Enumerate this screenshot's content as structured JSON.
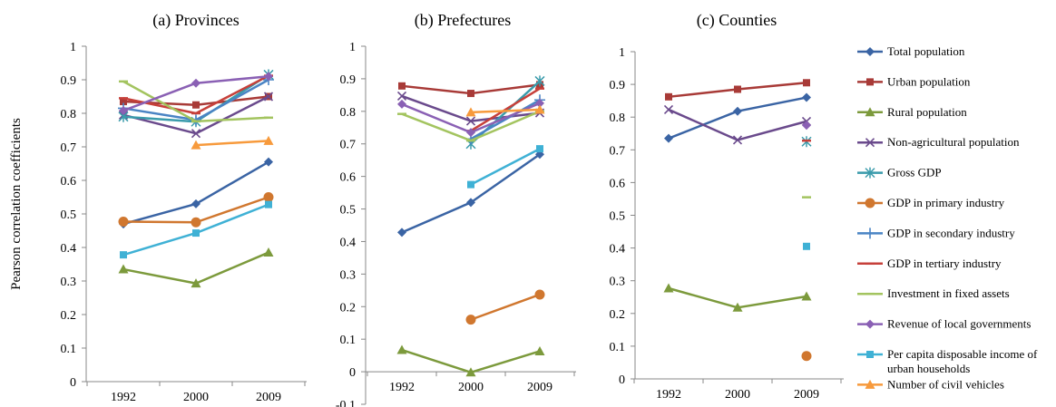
{
  "figure": {
    "ylabel": "Pearson correlation coefficients"
  },
  "chart_data": [
    {
      "type": "line",
      "title": "(a) Provinces",
      "categories": [
        "1992",
        "2000",
        "2009"
      ],
      "ylim": [
        0,
        1
      ],
      "yticks": [
        "0",
        "0.1",
        "0.2",
        "0.3",
        "0.4",
        "0.5",
        "0.6",
        "0.7",
        "0.8",
        "0.9",
        "1"
      ],
      "grid": false,
      "series": [
        {
          "name": "Total population",
          "values": [
            0.47,
            0.53,
            0.655
          ]
        },
        {
          "name": "Urban population",
          "values": [
            0.835,
            0.825,
            0.85
          ]
        },
        {
          "name": "Rural population",
          "values": [
            0.335,
            0.293,
            0.385
          ]
        },
        {
          "name": "Non-agricultural population",
          "values": [
            0.795,
            0.74,
            0.85
          ]
        },
        {
          "name": "Gross GDP",
          "values": [
            0.79,
            0.775,
            0.915
          ]
        },
        {
          "name": "GDP in primary industry",
          "values": [
            0.477,
            0.475,
            0.55
          ]
        },
        {
          "name": "GDP in secondary industry",
          "values": [
            0.815,
            0.78,
            0.9
          ]
        },
        {
          "name": "GDP in tertiary industry",
          "values": [
            0.845,
            0.8,
            0.912
          ]
        },
        {
          "name": "Investment in fixed assets",
          "values": [
            0.895,
            0.776,
            0.787
          ]
        },
        {
          "name": "Revenue of local governments",
          "values": [
            0.808,
            0.89,
            0.91
          ]
        },
        {
          "name": "Per capita disposable income of urban households",
          "values": [
            0.378,
            0.443,
            0.528
          ]
        },
        {
          "name": "Number of civil vehicles",
          "values": [
            null,
            0.705,
            0.718
          ]
        }
      ]
    },
    {
      "type": "line",
      "title": "(b) Prefectures",
      "categories": [
        "1992",
        "2000",
        "2009"
      ],
      "ylim": [
        -0.1,
        1
      ],
      "yticks": [
        "-0.1",
        "0",
        "0.1",
        "0.2",
        "0.3",
        "0.4",
        "0.5",
        "0.6",
        "0.7",
        "0.8",
        "0.9",
        "1"
      ],
      "grid": false,
      "series": [
        {
          "name": "Total population",
          "values": [
            0.428,
            0.52,
            0.668
          ]
        },
        {
          "name": "Urban population",
          "values": [
            0.878,
            0.855,
            0.882
          ]
        },
        {
          "name": "Rural population",
          "values": [
            0.067,
            -0.002,
            0.063
          ]
        },
        {
          "name": "Non-agricultural population",
          "values": [
            0.847,
            0.77,
            0.795
          ]
        },
        {
          "name": "Gross GDP",
          "values": [
            null,
            0.7,
            0.893
          ]
        },
        {
          "name": "GDP in primary industry",
          "values": [
            null,
            0.16,
            0.237
          ]
        },
        {
          "name": "GDP in secondary industry",
          "values": [
            null,
            0.715,
            0.835
          ]
        },
        {
          "name": "GDP in tertiary industry",
          "values": [
            null,
            0.74,
            0.87
          ]
        },
        {
          "name": "Investment in fixed assets",
          "values": [
            0.792,
            0.71,
            0.8
          ]
        },
        {
          "name": "Revenue of local governments",
          "values": [
            0.822,
            0.735,
            0.825
          ]
        },
        {
          "name": "Per capita disposable income of urban households",
          "values": [
            null,
            0.575,
            0.685
          ]
        },
        {
          "name": "Number of civil vehicles",
          "values": [
            null,
            0.797,
            0.805
          ]
        }
      ]
    },
    {
      "type": "line",
      "title": "(c) Counties",
      "categories": [
        "1992",
        "2000",
        "2009"
      ],
      "ylim": [
        0,
        1
      ],
      "yticks": [
        "0",
        "0.1",
        "0.2",
        "0.3",
        "0.4",
        "0.5",
        "0.6",
        "0.7",
        "0.8",
        "0.9",
        "1"
      ],
      "grid": false,
      "series": [
        {
          "name": "Total population",
          "values": [
            0.735,
            0.818,
            0.86
          ]
        },
        {
          "name": "Urban population",
          "values": [
            0.862,
            0.885,
            0.905
          ]
        },
        {
          "name": "Rural population",
          "values": [
            0.277,
            0.218,
            0.252
          ]
        },
        {
          "name": "Non-agricultural population",
          "values": [
            0.823,
            0.73,
            0.787
          ]
        },
        {
          "name": "Gross GDP",
          "values": [
            null,
            null,
            0.725
          ]
        },
        {
          "name": "GDP in primary industry",
          "values": [
            null,
            null,
            0.07
          ]
        },
        {
          "name": "GDP in secondary industry",
          "values": [
            null,
            null,
            null
          ]
        },
        {
          "name": "GDP in tertiary industry",
          "values": [
            null,
            null,
            0.728
          ]
        },
        {
          "name": "Investment in fixed assets",
          "values": [
            null,
            null,
            0.555
          ]
        },
        {
          "name": "Revenue of local governments",
          "values": [
            null,
            null,
            0.775
          ]
        },
        {
          "name": "Per capita disposable income of urban households",
          "values": [
            null,
            null,
            0.405
          ]
        },
        {
          "name": "Number of civil vehicles",
          "values": [
            null,
            null,
            null
          ]
        }
      ]
    }
  ],
  "legend": {
    "position": "right",
    "items": [
      {
        "label": "Total population",
        "color": "#3a64a4",
        "marker": "diamond"
      },
      {
        "label": "Urban population",
        "color": "#a83a37",
        "marker": "square"
      },
      {
        "label": "Rural population",
        "color": "#7c9a3c",
        "marker": "triangle"
      },
      {
        "label": "Non-agricultural population",
        "color": "#6a4a8c",
        "marker": "x"
      },
      {
        "label": "Gross GDP",
        "color": "#3a9bab",
        "marker": "star"
      },
      {
        "label": "GDP in primary industry",
        "color": "#d0772f",
        "marker": "circle"
      },
      {
        "label": "GDP in secondary industry",
        "color": "#4a84c4",
        "marker": "plus"
      },
      {
        "label": "GDP in tertiary industry",
        "color": "#c6403a",
        "marker": "dash"
      },
      {
        "label": "Investment in fixed assets",
        "color": "#a3c45f",
        "marker": "dash"
      },
      {
        "label": "Revenue of local governments",
        "color": "#8a60b4",
        "marker": "diamond"
      },
      {
        "label": "Per capita disposable income of urban households",
        "color": "#3fb1d5",
        "marker": "square"
      },
      {
        "label": "Number of civil vehicles",
        "color": "#f79a3c",
        "marker": "triangle"
      }
    ]
  }
}
